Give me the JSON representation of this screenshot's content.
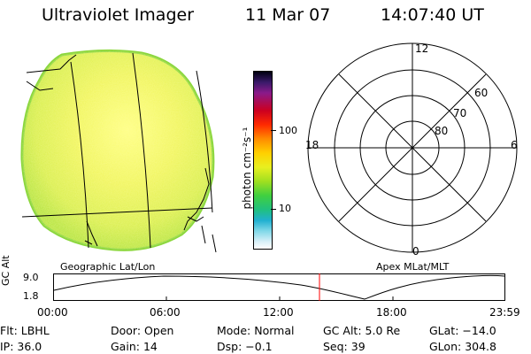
{
  "header": {
    "instrument": "Ultraviolet Imager",
    "date": "11 Mar 07",
    "time": "14:07:40 UT"
  },
  "colorbar": {
    "label": "photon cm⁻²s⁻¹",
    "ticks": [
      "100",
      "10"
    ]
  },
  "polar": {
    "mlt_labels": [
      "12",
      "18",
      "6",
      "0"
    ],
    "lat_labels": [
      "60",
      "70",
      "80"
    ]
  },
  "panel_titles": {
    "left": "Geographic Lat/Lon",
    "right": "Apex MLat/MLT"
  },
  "altitude_plot": {
    "ylabel": "GC Alt",
    "y_ticks": [
      "9.0",
      "1.8"
    ],
    "x_ticks": [
      "00:00",
      "06:00",
      "12:00",
      "18:00",
      "23:59"
    ],
    "current_time_marker": "14:07:40",
    "marker_color": "#ff0000"
  },
  "status": {
    "row1": [
      {
        "key": "Flt:",
        "value": "LBHL"
      },
      {
        "key": "Door:",
        "value": "Open"
      },
      {
        "key": "Mode:",
        "value": "Normal"
      },
      {
        "key": "GC Alt:",
        "value": "5.0 Re"
      },
      {
        "key": "GLat:",
        "value": "−14.0"
      }
    ],
    "row2": [
      {
        "key": "IP:",
        "value": "36.0"
      },
      {
        "key": "Gain:",
        "value": "14"
      },
      {
        "key": "Dsp:",
        "value": "−0.1"
      },
      {
        "key": "Seq:",
        "value": "39"
      },
      {
        "key": "GLon:",
        "value": "304.8"
      }
    ]
  }
}
